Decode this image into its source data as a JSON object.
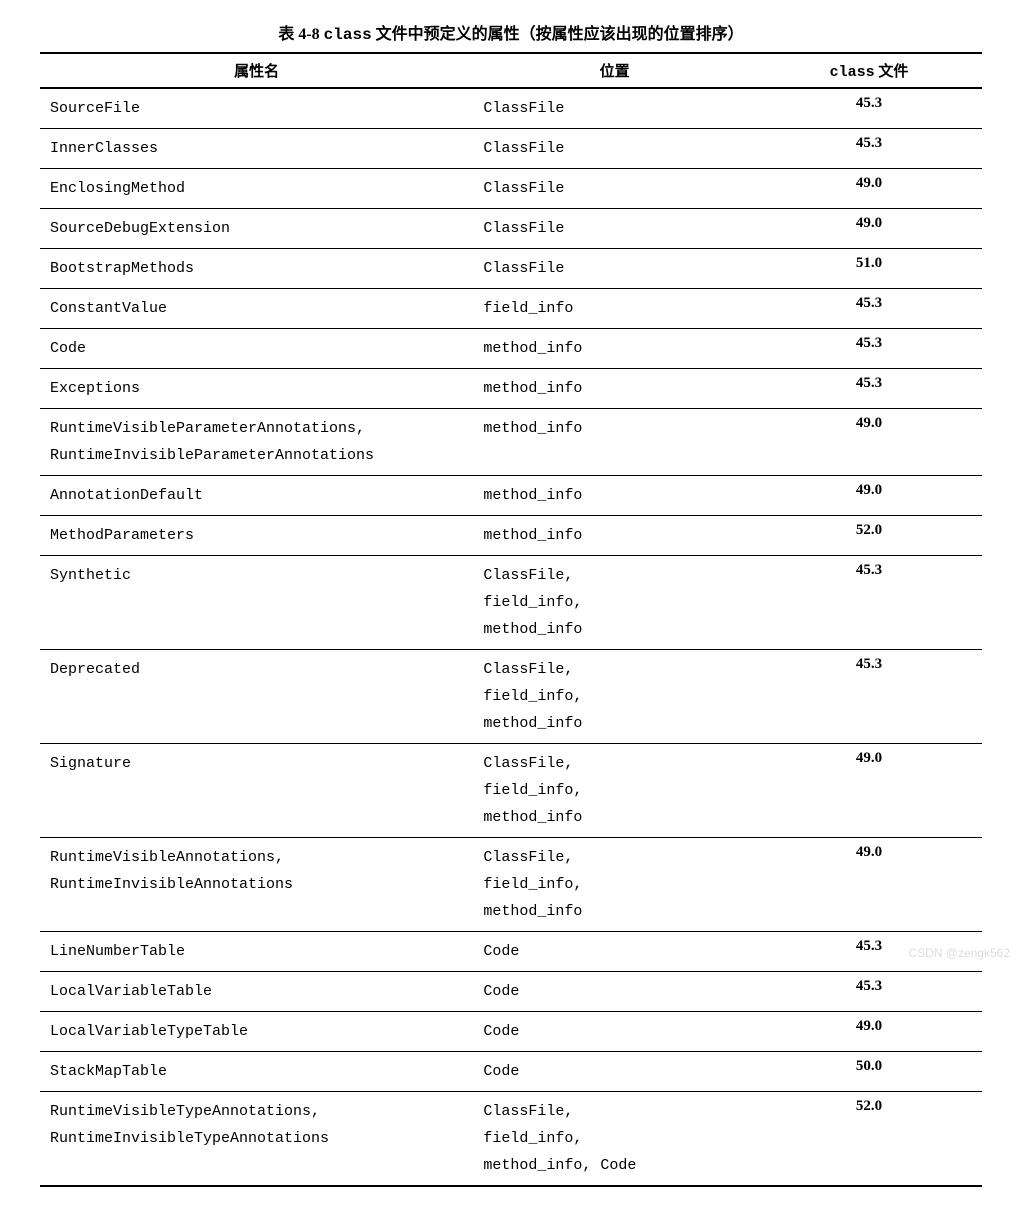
{
  "caption": {
    "prefix": "表 4-8  ",
    "mono": "class",
    "suffix": " 文件中预定义的属性（按属性应该出现的位置排序）"
  },
  "headers": {
    "name": "属性名",
    "location": "位置",
    "classfile_mono": "class",
    "classfile_suffix": " 文件"
  },
  "rows": [
    {
      "name": [
        "SourceFile"
      ],
      "loc": [
        "ClassFile"
      ],
      "ver": "45.3"
    },
    {
      "name": [
        "InnerClasses"
      ],
      "loc": [
        "ClassFile"
      ],
      "ver": "45.3"
    },
    {
      "name": [
        "EnclosingMethod"
      ],
      "loc": [
        "ClassFile"
      ],
      "ver": "49.0"
    },
    {
      "name": [
        "SourceDebugExtension"
      ],
      "loc": [
        "ClassFile"
      ],
      "ver": "49.0"
    },
    {
      "name": [
        "BootstrapMethods"
      ],
      "loc": [
        "ClassFile"
      ],
      "ver": "51.0"
    },
    {
      "name": [
        "ConstantValue"
      ],
      "loc": [
        "field_info"
      ],
      "ver": "45.3"
    },
    {
      "name": [
        "Code"
      ],
      "loc": [
        "method_info"
      ],
      "ver": "45.3"
    },
    {
      "name": [
        "Exceptions"
      ],
      "loc": [
        "method_info"
      ],
      "ver": "45.3"
    },
    {
      "name": [
        "RuntimeVisibleParameterAnnotations,",
        "RuntimeInvisibleParameterAnnotations"
      ],
      "loc": [
        "method_info"
      ],
      "ver": "49.0"
    },
    {
      "name": [
        "AnnotationDefault"
      ],
      "loc": [
        "method_info"
      ],
      "ver": "49.0"
    },
    {
      "name": [
        "MethodParameters"
      ],
      "loc": [
        "method_info"
      ],
      "ver": "52.0"
    },
    {
      "name": [
        "Synthetic"
      ],
      "loc": [
        "ClassFile,",
        "field_info,",
        "method_info"
      ],
      "ver": "45.3"
    },
    {
      "name": [
        "Deprecated"
      ],
      "loc": [
        "ClassFile,",
        "field_info,",
        "method_info"
      ],
      "ver": "45.3"
    },
    {
      "name": [
        "Signature"
      ],
      "loc": [
        "ClassFile,",
        "field_info,",
        "method_info"
      ],
      "ver": "49.0"
    },
    {
      "name": [
        "RuntimeVisibleAnnotations,",
        "RuntimeInvisibleAnnotations"
      ],
      "loc": [
        "ClassFile,",
        "field_info,",
        "method_info"
      ],
      "ver": "49.0"
    },
    {
      "name": [
        "LineNumberTable"
      ],
      "loc": [
        "Code"
      ],
      "ver": "45.3"
    },
    {
      "name": [
        "LocalVariableTable"
      ],
      "loc": [
        "Code"
      ],
      "ver": "45.3"
    },
    {
      "name": [
        "LocalVariableTypeTable"
      ],
      "loc": [
        "Code"
      ],
      "ver": "49.0"
    },
    {
      "name": [
        "StackMapTable"
      ],
      "loc": [
        "Code"
      ],
      "ver": "50.0"
    },
    {
      "name": [
        "RuntimeVisibleTypeAnnotations,",
        "RuntimeInvisibleTypeAnnotations"
      ],
      "loc": [
        "ClassFile,",
        "field_info,",
        "method_info, Code"
      ],
      "ver": "52.0"
    }
  ],
  "watermark": "CSDN @zengk562",
  "style": {
    "background_color": "#ffffff",
    "text_color": "#000000",
    "border_color": "#000000",
    "caption_fontsize": 16,
    "cell_fontsize": 15,
    "mono_font": "Courier New",
    "body_font": "SimSun"
  }
}
